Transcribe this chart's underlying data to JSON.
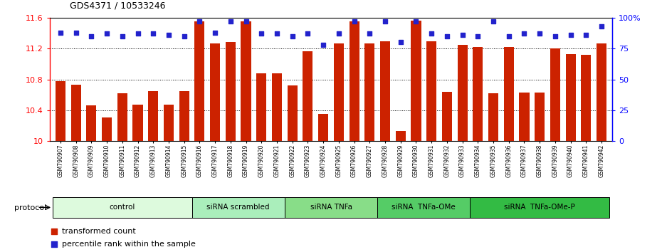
{
  "title": "GDS4371 / 10533246",
  "samples": [
    "GSM790907",
    "GSM790908",
    "GSM790909",
    "GSM790910",
    "GSM790911",
    "GSM790912",
    "GSM790913",
    "GSM790914",
    "GSM790915",
    "GSM790916",
    "GSM790917",
    "GSM790918",
    "GSM790919",
    "GSM790920",
    "GSM790921",
    "GSM790922",
    "GSM790923",
    "GSM790924",
    "GSM790925",
    "GSM790926",
    "GSM790927",
    "GSM790928",
    "GSM790929",
    "GSM790930",
    "GSM790931",
    "GSM790932",
    "GSM790933",
    "GSM790934",
    "GSM790935",
    "GSM790936",
    "GSM790937",
    "GSM790938",
    "GSM790939",
    "GSM790940",
    "GSM790941",
    "GSM790942"
  ],
  "bar_values": [
    10.78,
    10.73,
    10.46,
    10.31,
    10.62,
    10.47,
    10.65,
    10.47,
    10.65,
    11.55,
    11.27,
    11.28,
    11.55,
    10.88,
    10.88,
    10.72,
    11.16,
    10.35,
    11.27,
    11.55,
    11.27,
    11.29,
    10.13,
    11.56,
    11.29,
    10.64,
    11.25,
    11.22,
    10.62,
    11.22,
    10.63,
    10.63,
    11.2,
    11.13,
    11.12,
    11.27
  ],
  "percentile_values": [
    88,
    88,
    85,
    87,
    85,
    87,
    87,
    86,
    85,
    97,
    88,
    97,
    97,
    87,
    87,
    85,
    87,
    78,
    87,
    97,
    87,
    97,
    80,
    97,
    87,
    85,
    86,
    85,
    97,
    85,
    87,
    87,
    85,
    86,
    86,
    93
  ],
  "ylim_left": [
    10.0,
    11.6
  ],
  "ylim_right": [
    0,
    100
  ],
  "yticks_left": [
    10.0,
    10.4,
    10.8,
    11.2,
    11.6
  ],
  "ytick_labels_left": [
    "10",
    "10.4",
    "10.8",
    "11.2",
    "11.6"
  ],
  "yticks_right": [
    0,
    25,
    50,
    75,
    100
  ],
  "ytick_labels_right": [
    "0",
    "25",
    "50",
    "75",
    "100%"
  ],
  "bar_color": "#CC2200",
  "dot_color": "#2222CC",
  "groups": [
    {
      "label": "control",
      "start": 0,
      "end": 9,
      "color": "#DDFADD"
    },
    {
      "label": "siRNA scrambled",
      "start": 9,
      "end": 15,
      "color": "#AAEEBB"
    },
    {
      "label": "siRNA TNFa",
      "start": 15,
      "end": 21,
      "color": "#88DD88"
    },
    {
      "label": "siRNA  TNFa-OMe",
      "start": 21,
      "end": 27,
      "color": "#55CC66"
    },
    {
      "label": "siRNA  TNFa-OMe-P",
      "start": 27,
      "end": 36,
      "color": "#33BB44"
    }
  ],
  "protocol_label": "protocol",
  "legend_bar_label": "transformed count",
  "legend_dot_label": "percentile rank within the sample"
}
